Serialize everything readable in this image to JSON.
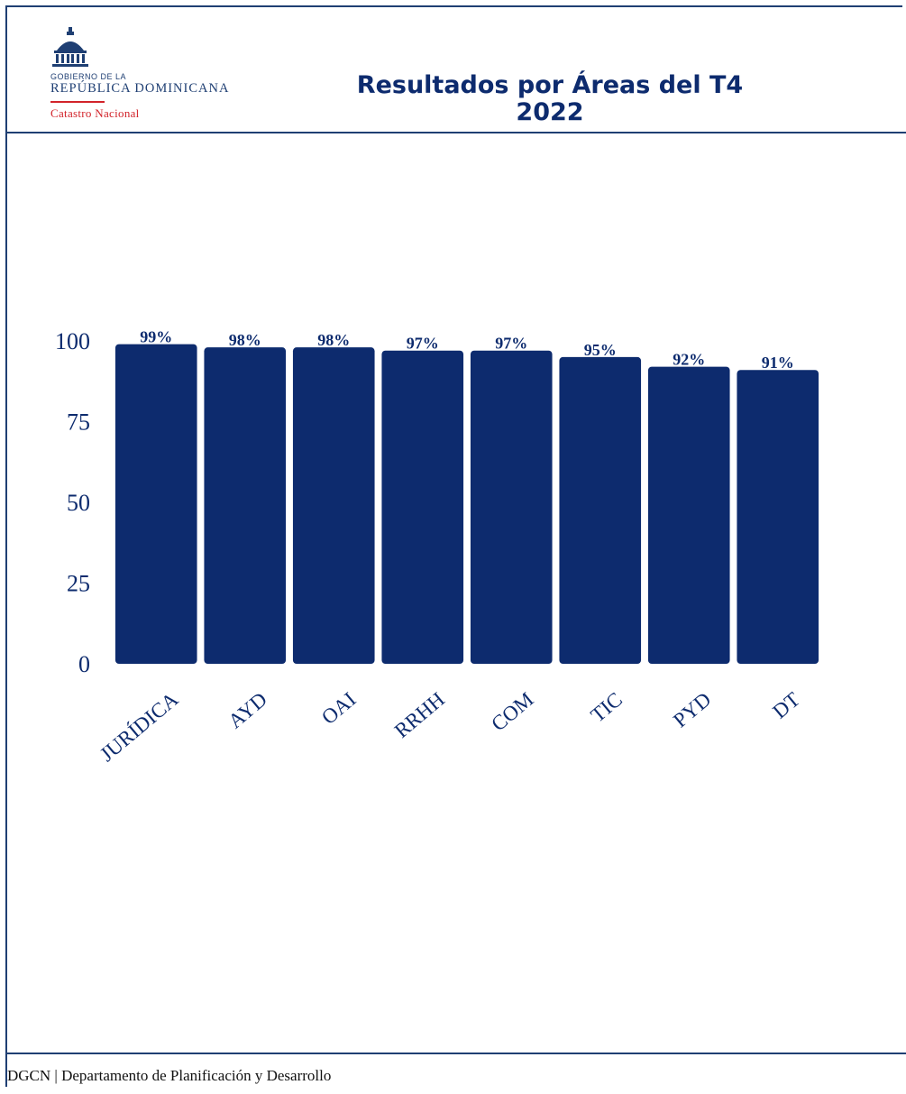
{
  "header": {
    "logo": {
      "line1": "GOBIERNO DE LA",
      "line2": "REPÚBLICA DOMINICANA",
      "line3": "Catastro Nacional"
    },
    "title_line1": "Resultados por Áreas del T4",
    "title_line2": "2022"
  },
  "chart_data": {
    "type": "bar",
    "categories": [
      "JURÍDICA",
      "AYD",
      "OAI",
      "RRHH",
      "COM",
      "TIC",
      "PYD",
      "DT"
    ],
    "values": [
      99,
      98,
      98,
      97,
      97,
      95,
      92,
      91
    ],
    "data_labels": [
      "99%",
      "98%",
      "98%",
      "97%",
      "97%",
      "95%",
      "92%",
      "91%"
    ],
    "title": "Resultados por Áreas del T4 2022",
    "xlabel": "",
    "ylabel": "",
    "ylim": [
      0,
      100
    ],
    "yticks": [
      0,
      25,
      50,
      75,
      100
    ],
    "grid": false,
    "legend": "none",
    "bar_color": "#0d2b6e",
    "axis_label_color": "#0d2b6e"
  },
  "footer": {
    "text": "DGCN | Departamento de Planificación y Desarrollo"
  },
  "colors": {
    "border": "#1f3f73",
    "title": "#0d2b6e",
    "logo_accent": "#d2232a"
  }
}
